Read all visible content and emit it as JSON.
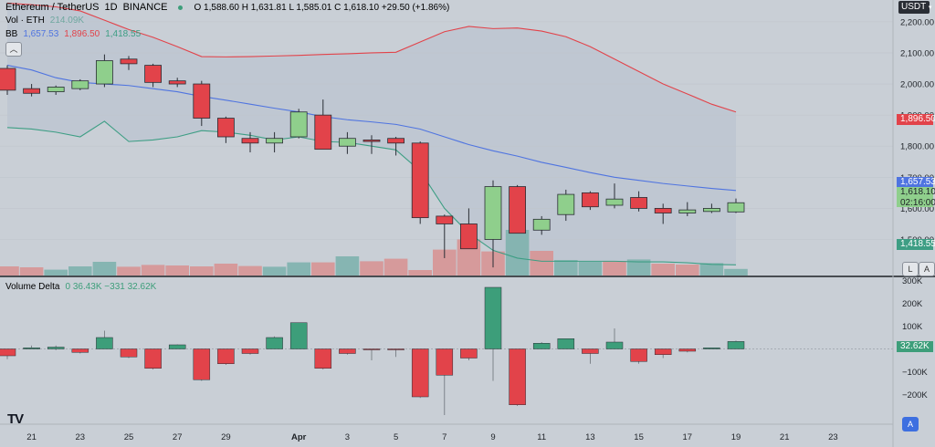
{
  "header": {
    "symbol": "Ethereum / TetherUS",
    "interval": "1D",
    "exchange": "BINANCE",
    "ohlc": "O 1,588.60  H 1,631.81  L 1,585.01  C 1,618.10  +29.50 (+1.86%)",
    "currency": "USDT"
  },
  "volume_legend": {
    "label": "Vol · ETH",
    "value": "214.09K"
  },
  "bb_legend": {
    "label": "BB",
    "basis": "1,657.53",
    "upper": "1,896.50",
    "lower": "1,418.55"
  },
  "delta_legend": {
    "label": "Volume Delta",
    "values": "0  36.43K  −331  32.62K"
  },
  "price_tags": {
    "upper": "1,896.50",
    "basis": "1,657.53",
    "last": "1,618.10",
    "countdown": "02:16:00",
    "lower": "1,418.55",
    "delta": "32.62K"
  },
  "buttons": {
    "log": "L",
    "auto": "A",
    "auto2": "A"
  },
  "logo": "TV",
  "colors": {
    "up": "#8fcf8c",
    "down": "#e2434a",
    "upper_band": "#e2434a",
    "basis": "#4f74e0",
    "lower_band": "#3d9e84",
    "vol_up": "#7ab0ac",
    "vol_down": "#d89090",
    "delta_up": "#3d9e7a",
    "delta_down": "#e2434a"
  },
  "chart_data": [
    {
      "type": "candlestick",
      "title": "Ethereum / TetherUS 1D BINANCE",
      "y_ticks": [
        1500,
        1600,
        1700,
        1800,
        1900,
        2000,
        2100,
        2200
      ],
      "y_tick_labels": [
        "1,500.00",
        "1,600.00",
        "1,700.00",
        "1,800.00",
        "1,900.00",
        "2,000.00",
        "2,100.00",
        "2,200.00"
      ],
      "ylim": [
        1390,
        2270
      ],
      "x_tick_labels": [
        "21",
        "23",
        "25",
        "27",
        "29",
        "Apr",
        "3",
        "5",
        "7",
        "9",
        "11",
        "13",
        "15",
        "17",
        "19",
        "21",
        "23"
      ],
      "x_tick_index": [
        1,
        3,
        5,
        7,
        9,
        12,
        14,
        16,
        18,
        20,
        22,
        24,
        26,
        28,
        30,
        32,
        34
      ],
      "candles": [
        {
          "o": 2050,
          "h": 2060,
          "l": 1965,
          "c": 1980
        },
        {
          "o": 1985,
          "h": 2000,
          "l": 1960,
          "c": 1970
        },
        {
          "o": 1975,
          "h": 1995,
          "l": 1965,
          "c": 1990
        },
        {
          "o": 1985,
          "h": 2015,
          "l": 1980,
          "c": 2010
        },
        {
          "o": 2000,
          "h": 2095,
          "l": 1990,
          "c": 2075
        },
        {
          "o": 2080,
          "h": 2090,
          "l": 2045,
          "c": 2065
        },
        {
          "o": 2060,
          "h": 2065,
          "l": 1990,
          "c": 2005
        },
        {
          "o": 2010,
          "h": 2020,
          "l": 1990,
          "c": 2000
        },
        {
          "o": 2000,
          "h": 2010,
          "l": 1865,
          "c": 1890
        },
        {
          "o": 1890,
          "h": 1895,
          "l": 1810,
          "c": 1830
        },
        {
          "o": 1825,
          "h": 1845,
          "l": 1780,
          "c": 1810
        },
        {
          "o": 1810,
          "h": 1845,
          "l": 1780,
          "c": 1825
        },
        {
          "o": 1830,
          "h": 1920,
          "l": 1825,
          "c": 1910
        },
        {
          "o": 1900,
          "h": 1950,
          "l": 1790,
          "c": 1790
        },
        {
          "o": 1800,
          "h": 1845,
          "l": 1775,
          "c": 1825
        },
        {
          "o": 1820,
          "h": 1835,
          "l": 1775,
          "c": 1815
        },
        {
          "o": 1825,
          "h": 1830,
          "l": 1770,
          "c": 1810
        },
        {
          "o": 1810,
          "h": 1815,
          "l": 1550,
          "c": 1570
        },
        {
          "o": 1575,
          "h": 1580,
          "l": 1440,
          "c": 1550
        },
        {
          "o": 1550,
          "h": 1600,
          "l": 1470,
          "c": 1470
        },
        {
          "o": 1500,
          "h": 1690,
          "l": 1410,
          "c": 1670
        },
        {
          "o": 1670,
          "h": 1675,
          "l": 1520,
          "c": 1520
        },
        {
          "o": 1530,
          "h": 1575,
          "l": 1515,
          "c": 1565
        },
        {
          "o": 1580,
          "h": 1660,
          "l": 1560,
          "c": 1645
        },
        {
          "o": 1650,
          "h": 1655,
          "l": 1595,
          "c": 1605
        },
        {
          "o": 1610,
          "h": 1680,
          "l": 1600,
          "c": 1630
        },
        {
          "o": 1635,
          "h": 1655,
          "l": 1590,
          "c": 1600
        },
        {
          "o": 1600,
          "h": 1615,
          "l": 1550,
          "c": 1585
        },
        {
          "o": 1585,
          "h": 1620,
          "l": 1575,
          "c": 1595
        },
        {
          "o": 1590,
          "h": 1615,
          "l": 1585,
          "c": 1600
        },
        {
          "o": 1588.6,
          "h": 1631.81,
          "l": 1585.01,
          "c": 1618.1
        }
      ],
      "bollinger": {
        "upper": [
          2260,
          2255,
          2248,
          2235,
          2205,
          2175,
          2150,
          2120,
          2088,
          2087,
          2088,
          2090,
          2092,
          2095,
          2097,
          2100,
          2102,
          2135,
          2168,
          2185,
          2178,
          2180,
          2170,
          2152,
          2120,
          2080,
          2040,
          2000,
          1968,
          1935,
          1910
        ],
        "basis": [
          2060,
          2045,
          2020,
          2005,
          2000,
          1995,
          1985,
          1975,
          1960,
          1948,
          1935,
          1922,
          1910,
          1895,
          1885,
          1878,
          1870,
          1855,
          1830,
          1805,
          1785,
          1768,
          1748,
          1732,
          1715,
          1700,
          1690,
          1680,
          1672,
          1664,
          1657.53
        ],
        "lower": [
          1860,
          1855,
          1845,
          1830,
          1880,
          1815,
          1820,
          1830,
          1850,
          1845,
          1835,
          1820,
          1830,
          1815,
          1812,
          1800,
          1788,
          1720,
          1600,
          1520,
          1465,
          1440,
          1430,
          1430,
          1430,
          1430,
          1428,
          1428,
          1425,
          1420,
          1418.55
        ]
      }
    },
    {
      "type": "bar",
      "title": "Vol · ETH",
      "values": [
        50,
        45,
        32,
        50,
        75,
        48,
        58,
        55,
        50,
        65,
        52,
        48,
        72,
        72,
        105,
        78,
        92,
        30,
        142,
        198,
        132,
        250,
        135,
        85,
        75,
        80,
        88,
        65,
        60,
        68,
        36
      ],
      "directions": [
        "down",
        "down",
        "up",
        "up",
        "up",
        "down",
        "down",
        "down",
        "down",
        "down",
        "down",
        "up",
        "up",
        "down",
        "up",
        "down",
        "down",
        "down",
        "down",
        "down",
        "down",
        "up",
        "down",
        "up",
        "up",
        "down",
        "up",
        "down",
        "down",
        "up",
        "up"
      ]
    },
    {
      "type": "bar",
      "title": "Volume Delta",
      "y_ticks": [
        -200000,
        -100000,
        0,
        100000,
        200000,
        300000
      ],
      "y_tick_labels": [
        "−200K",
        "−100K",
        "0",
        "100K",
        "200K",
        "300K"
      ],
      "ylim": [
        -330000,
        310000
      ],
      "values": [
        -30000,
        5000,
        8000,
        -15000,
        50000,
        -35000,
        -85000,
        18000,
        -135000,
        -65000,
        -20000,
        50000,
        115000,
        -85000,
        -20000,
        -3000,
        -3000,
        -210000,
        -115000,
        -40000,
        270000,
        -245000,
        25000,
        45000,
        -20000,
        30000,
        -55000,
        -25000,
        -10000,
        5000,
        32620
      ],
      "wicks": [
        [
          -45000,
          0
        ],
        [
          0,
          15000
        ],
        [
          -5000,
          15000
        ],
        [
          -20000,
          0
        ],
        [
          0,
          80000
        ],
        [
          -40000,
          0
        ],
        [
          -90000,
          0
        ],
        [
          0,
          20000
        ],
        [
          -140000,
          0
        ],
        [
          -70000,
          0
        ],
        [
          -25000,
          0
        ],
        [
          0,
          55000
        ],
        [
          0,
          115000
        ],
        [
          -90000,
          0
        ],
        [
          -25000,
          0
        ],
        [
          -50000,
          0
        ],
        [
          -35000,
          0
        ],
        [
          -215000,
          0
        ],
        [
          -290000,
          0
        ],
        [
          -50000,
          0
        ],
        [
          -140000,
          270000
        ],
        [
          -250000,
          0
        ],
        [
          0,
          30000
        ],
        [
          0,
          45000
        ],
        [
          -65000,
          0
        ],
        [
          0,
          90000
        ],
        [
          -65000,
          0
        ],
        [
          -40000,
          0
        ],
        [
          -15000,
          0
        ],
        [
          0,
          5000
        ],
        [
          0,
          36430
        ]
      ]
    }
  ]
}
